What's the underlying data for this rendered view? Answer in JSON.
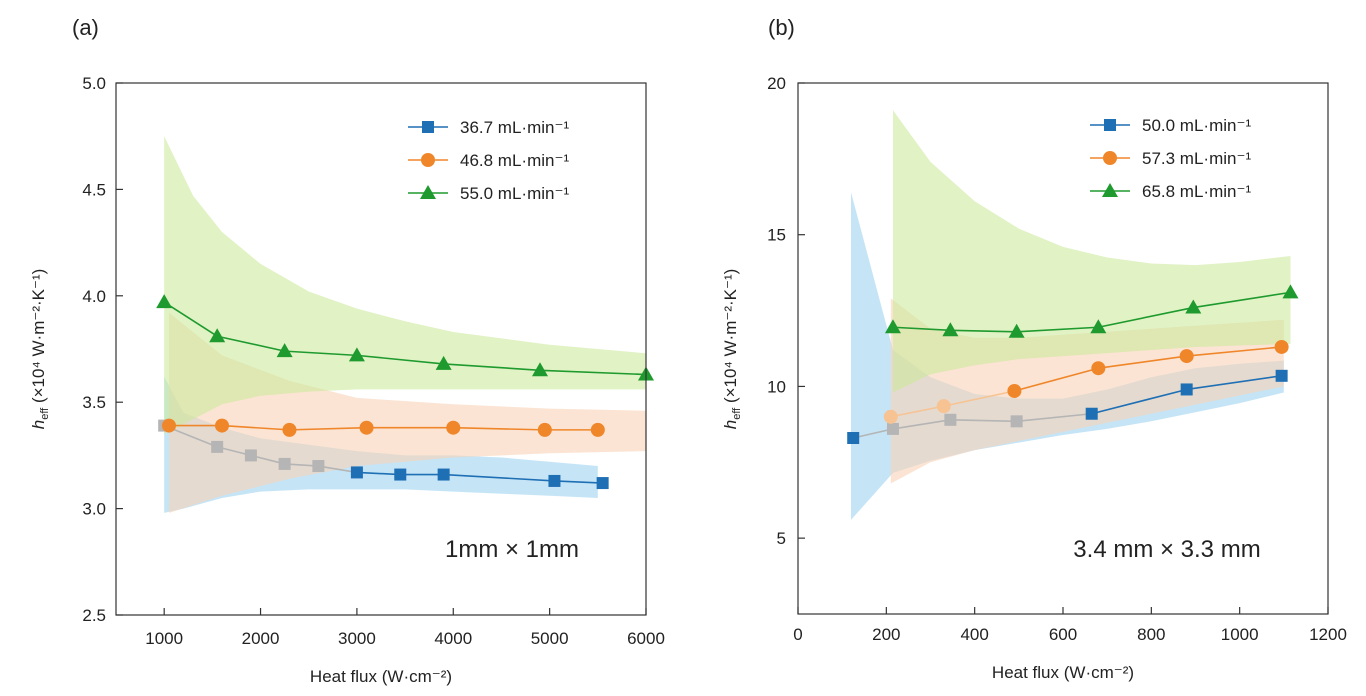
{
  "chart_data": [
    {
      "type": "line",
      "panel_label": "(a)",
      "annotation": "1mm × 1mm",
      "xlabel": "Heat flux (W·cm⁻²)",
      "ylabel_main": "h",
      "ylabel_sub": "eff",
      "ylabel_rest": " (×10⁴ W·m⁻²·K⁻¹)",
      "xlim": [
        500,
        6000
      ],
      "ylim": [
        2.5,
        5.0
      ],
      "xticks": [
        1000,
        2000,
        3000,
        4000,
        5000,
        6000
      ],
      "yticks": [
        "2.5",
        "3.0",
        "3.5",
        "4.0",
        "4.5",
        "5.0"
      ],
      "legend_position": "top-right",
      "series": [
        {
          "name": "36.7 mL·min⁻¹",
          "color": "#1f6fb4",
          "marker": "square",
          "x": [
            1000,
            1550,
            1900,
            2250,
            2600,
            3000,
            3450,
            3900,
            5050,
            5550
          ],
          "y": [
            3.39,
            3.29,
            3.25,
            3.21,
            3.2,
            3.17,
            3.16,
            3.16,
            3.13,
            3.12
          ],
          "faded_count": 5,
          "band_x": [
            1000,
            1200,
            1600,
            2000,
            2500,
            3000,
            3500,
            4000,
            4500,
            5000,
            5500
          ],
          "band_lo": [
            2.98,
            3.0,
            3.05,
            3.08,
            3.09,
            3.09,
            3.09,
            3.08,
            3.07,
            3.06,
            3.05
          ],
          "band_hi": [
            3.62,
            3.45,
            3.38,
            3.33,
            3.3,
            3.27,
            3.25,
            3.25,
            3.24,
            3.22,
            3.2
          ],
          "band_color": "#9fd3f2"
        },
        {
          "name": "46.8 mL·min⁻¹",
          "color": "#f0862a",
          "marker": "circle",
          "x": [
            1050,
            1600,
            2300,
            3100,
            4000,
            4950,
            5500
          ],
          "y": [
            3.39,
            3.39,
            3.37,
            3.38,
            3.38,
            3.37,
            3.37
          ],
          "faded_count": 0,
          "band_x": [
            1050,
            1600,
            2300,
            3000,
            4000,
            5000,
            6000
          ],
          "band_lo": [
            2.98,
            3.06,
            3.14,
            3.2,
            3.24,
            3.26,
            3.27
          ],
          "band_hi": [
            3.92,
            3.72,
            3.6,
            3.52,
            3.49,
            3.47,
            3.46
          ],
          "band_color": "#f9d2b6"
        },
        {
          "name": "55.0 mL·min⁻¹",
          "color": "#1e9a2e",
          "marker": "triangle",
          "x": [
            1000,
            1550,
            2250,
            3000,
            3900,
            4900,
            6000
          ],
          "y": [
            3.97,
            3.81,
            3.74,
            3.72,
            3.68,
            3.65,
            3.63
          ],
          "faded_count": 0,
          "band_x": [
            1000,
            1300,
            1600,
            2000,
            2500,
            3000,
            3500,
            4000,
            4500,
            5000,
            6000
          ],
          "band_lo": [
            3.35,
            3.42,
            3.49,
            3.53,
            3.55,
            3.56,
            3.56,
            3.56,
            3.56,
            3.56,
            3.56
          ],
          "band_hi": [
            4.75,
            4.47,
            4.3,
            4.15,
            4.02,
            3.94,
            3.88,
            3.83,
            3.8,
            3.77,
            3.73
          ],
          "band_color": "#cde99c"
        }
      ]
    },
    {
      "type": "line",
      "panel_label": "(b)",
      "annotation": "3.4 mm × 3.3 mm",
      "xlabel": "Heat flux (W·cm⁻²)",
      "ylabel_main": "h",
      "ylabel_sub": "eff",
      "ylabel_rest": " (×10⁴ W·m⁻²·K⁻¹)",
      "xlim": [
        0,
        1200
      ],
      "ylim": [
        2.5,
        20
      ],
      "xticks": [
        0,
        200,
        400,
        600,
        800,
        1000,
        1200
      ],
      "yticks": [
        "5",
        "10",
        "15",
        "20"
      ],
      "legend_position": "top-right",
      "series": [
        {
          "name": "50.0 mL·min⁻¹",
          "color": "#1f6fb4",
          "marker": "square",
          "x": [
            125,
            215,
            345,
            495,
            665,
            880,
            1095
          ],
          "y": [
            8.3,
            8.6,
            8.9,
            8.85,
            9.1,
            9.9,
            10.35
          ],
          "faded_count": 4,
          "faded_skip": 1,
          "band_x": [
            120,
            215,
            300,
            400,
            500,
            600,
            700,
            800,
            900,
            1000,
            1100
          ],
          "band_lo": [
            5.6,
            7.15,
            7.55,
            7.9,
            8.15,
            8.4,
            8.6,
            8.85,
            9.15,
            9.45,
            9.8
          ],
          "band_hi": [
            16.4,
            11.2,
            10.3,
            9.75,
            9.6,
            9.6,
            9.9,
            10.3,
            10.6,
            10.75,
            10.85
          ],
          "band_color": "#9fd3f2"
        },
        {
          "name": "57.3 mL·min⁻¹",
          "color": "#f0862a",
          "marker": "circle",
          "x": [
            210,
            330,
            490,
            680,
            880,
            1095
          ],
          "y": [
            9.0,
            9.35,
            9.85,
            10.6,
            11.0,
            11.3
          ],
          "faded_count": 2,
          "band_x": [
            210,
            300,
            400,
            500,
            600,
            700,
            800,
            900,
            1000,
            1100
          ],
          "band_lo": [
            6.8,
            7.5,
            7.9,
            8.2,
            8.5,
            8.8,
            9.1,
            9.4,
            9.7,
            10.0
          ],
          "band_hi": [
            12.9,
            11.9,
            11.6,
            11.6,
            11.7,
            11.8,
            11.9,
            12.0,
            12.1,
            12.2
          ],
          "band_color": "#f9d2b6"
        },
        {
          "name": "65.8 mL·min⁻¹",
          "color": "#1e9a2e",
          "marker": "triangle",
          "x": [
            215,
            345,
            495,
            680,
            895,
            1115
          ],
          "y": [
            11.95,
            11.85,
            11.8,
            11.95,
            12.6,
            13.1
          ],
          "faded_count": 0,
          "band_x": [
            215,
            300,
            400,
            500,
            600,
            700,
            800,
            900,
            1000,
            1115
          ],
          "band_lo": [
            9.8,
            10.4,
            10.7,
            10.9,
            11.0,
            11.1,
            11.2,
            11.3,
            11.35,
            11.4
          ],
          "band_hi": [
            19.1,
            17.4,
            16.1,
            15.2,
            14.6,
            14.25,
            14.05,
            14.0,
            14.1,
            14.3
          ],
          "band_color": "#cde99c"
        }
      ]
    }
  ]
}
